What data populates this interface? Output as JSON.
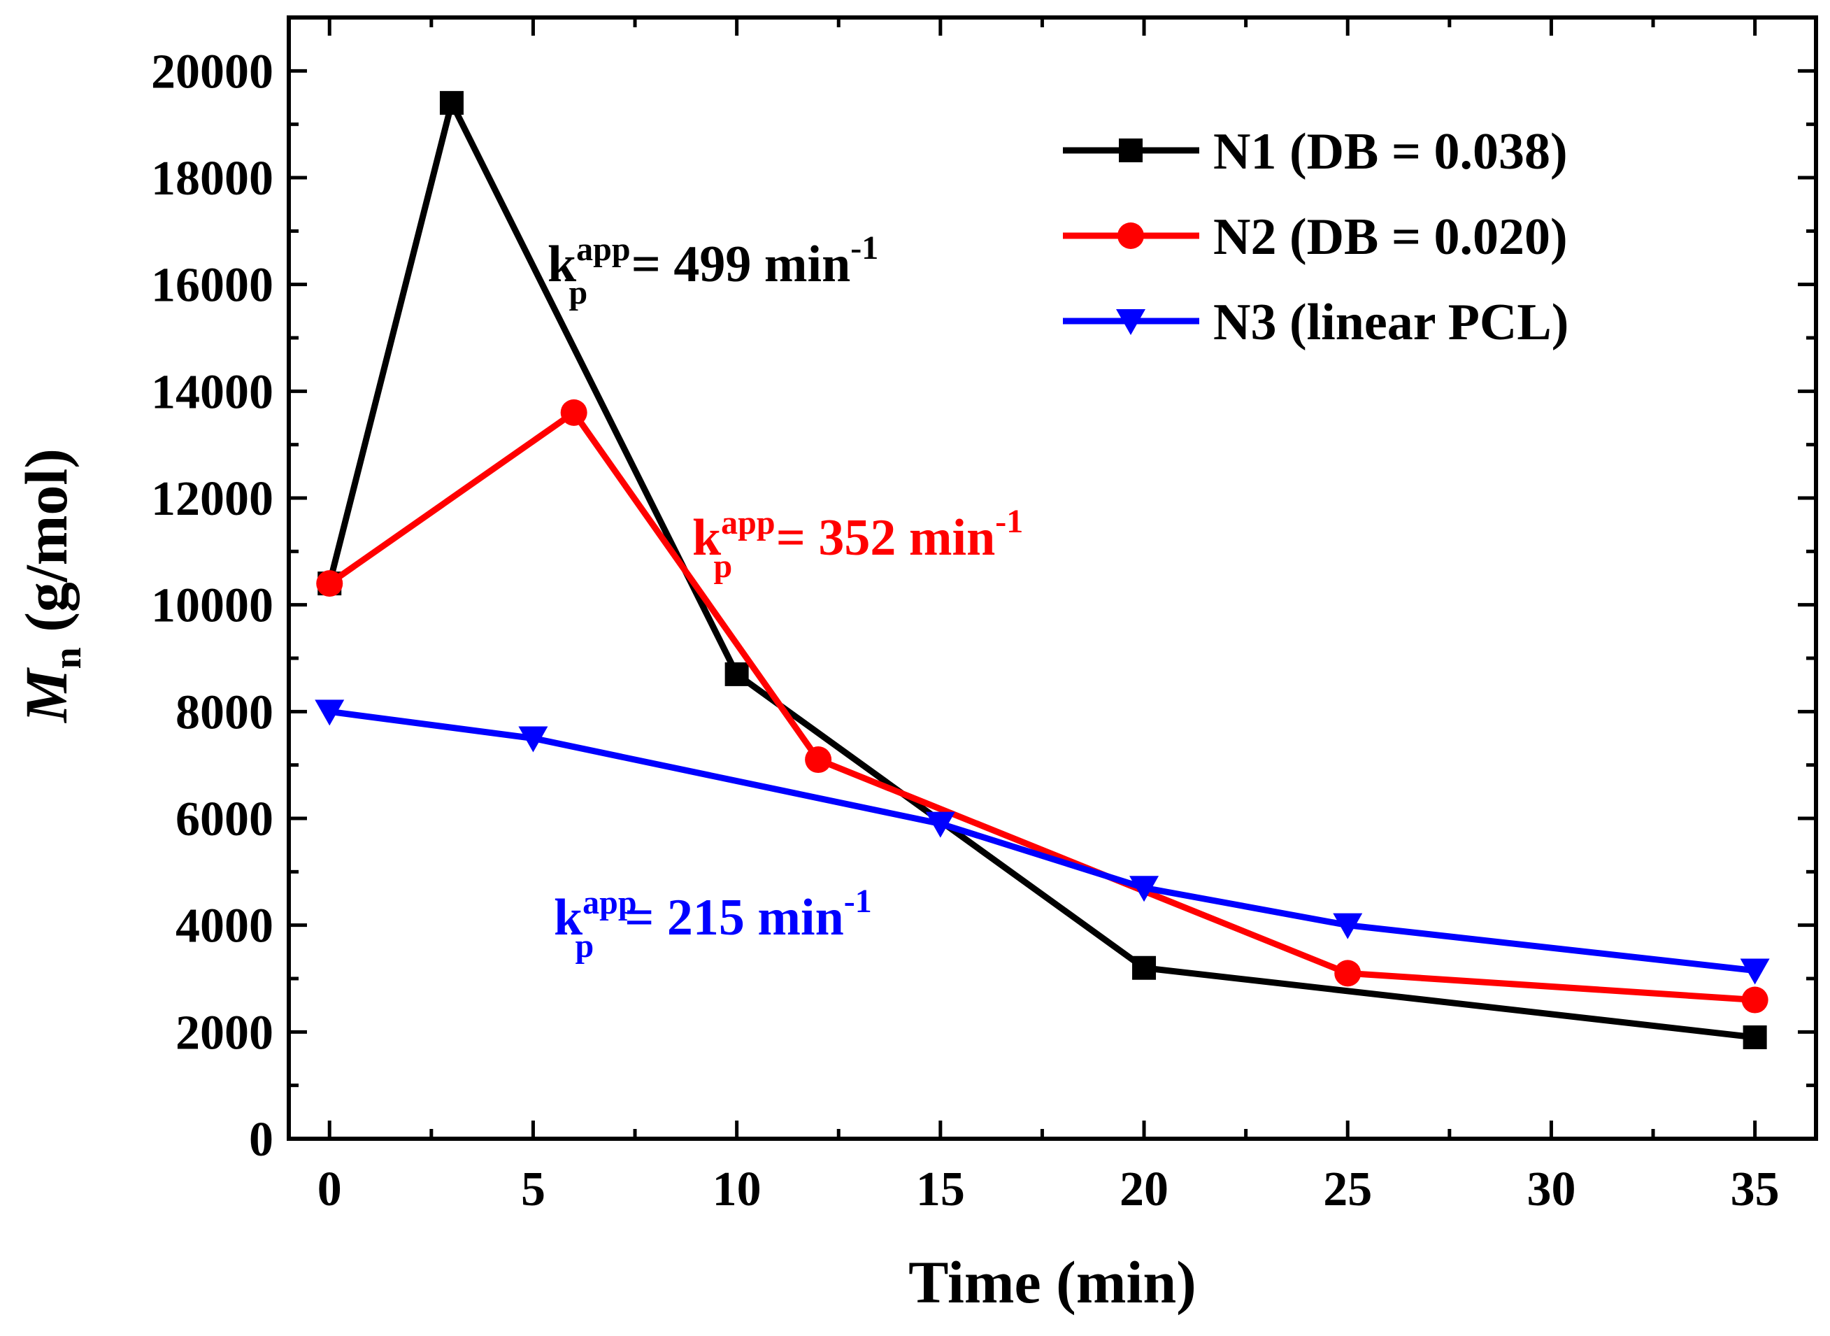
{
  "chart_data": {
    "type": "line",
    "title": "",
    "xlabel": "Time (min)",
    "ylabel": {
      "main": "M",
      "sub": "n",
      "rest": " (g/mol)"
    },
    "xlim": [
      -1,
      36.5
    ],
    "ylim": [
      0,
      21000
    ],
    "x_ticks": [
      0,
      5,
      10,
      15,
      20,
      25,
      30,
      35
    ],
    "x_tick_labels": [
      "0",
      "5",
      "10",
      "15",
      "20",
      "25",
      "30",
      "35"
    ],
    "y_ticks": [
      0,
      2000,
      4000,
      6000,
      8000,
      10000,
      12000,
      14000,
      16000,
      18000,
      20000
    ],
    "y_tick_labels": [
      "0",
      "2000",
      "4000",
      "6000",
      "8000",
      "10000",
      "12000",
      "14000",
      "16000",
      "18000",
      "20000"
    ],
    "legend_position": "top-right",
    "series": [
      {
        "name": "N1 (DB = 0.038)",
        "color": "#000000",
        "marker": "square",
        "x": [
          0,
          3,
          10,
          20,
          35
        ],
        "values": [
          10400,
          19400,
          8700,
          3200,
          1900
        ]
      },
      {
        "name": "N2 (DB = 0.020)",
        "color": "#ff0000",
        "marker": "circle",
        "x": [
          0,
          6,
          12,
          25,
          35
        ],
        "values": [
          10400,
          13600,
          7100,
          3100,
          2600
        ]
      },
      {
        "name": "N3 (linear PCL)",
        "color": "#0000ff",
        "marker": "triangle-down",
        "x": [
          0,
          5,
          15,
          20,
          25,
          35
        ],
        "values": [
          8000,
          7500,
          5900,
          4700,
          4000,
          3150
        ]
      }
    ],
    "annotations": [
      {
        "base": "k",
        "sub": "p",
        "sup": "app",
        "text": " = 499 min",
        "exp": "-1",
        "color": "#000000"
      },
      {
        "base": "k",
        "sub": "p",
        "sup": "app",
        "text": " = 352 min",
        "exp": "-1",
        "color": "#ff0000"
      },
      {
        "base": "k",
        "sub": "p",
        "sup": "app",
        "text": "= 215 min",
        "exp": "-1",
        "color": "#0000ff"
      }
    ]
  }
}
